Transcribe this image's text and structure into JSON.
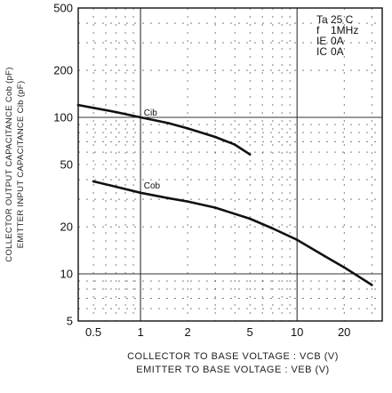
{
  "chart_data": {
    "type": "line",
    "x_scale": "log",
    "y_scale": "log",
    "xlim": [
      0.4,
      35
    ],
    "ylim": [
      5,
      500
    ],
    "grid": true,
    "x_ticks": [
      0.5,
      1,
      2,
      5,
      10,
      20
    ],
    "x_tick_labels": [
      "0.5",
      "1",
      "2",
      "5",
      "10",
      "20"
    ],
    "y_ticks": [
      5,
      10,
      20,
      50,
      100,
      200,
      500
    ],
    "y_tick_labels": [
      "5",
      "10",
      "20",
      "50",
      "100",
      "200",
      "500"
    ],
    "ylabel_lines": [
      "COLLECTOR OUTPUT CAPACITANCE  Cob (pF)",
      "EMITTER INPUT CAPACITANCE  Cib (pF)"
    ],
    "xlabel_lines": [
      "COLLECTOR TO BASE VOLTAGE : VCB  (V)",
      "EMITTER TO BASE VOLTAGE : VEB  (V)"
    ],
    "conditions": [
      {
        "label": "Ta",
        "value": "25 C"
      },
      {
        "label": "f",
        "value": "1MHz"
      },
      {
        "label": "IE",
        "value": "0A"
      },
      {
        "label": "IC",
        "value": "0A"
      }
    ],
    "series": [
      {
        "name": "Cib",
        "x": [
          0.4,
          0.5,
          0.7,
          1,
          1.5,
          2,
          3,
          4,
          5
        ],
        "y": [
          120,
          115,
          108,
          100,
          92,
          85,
          75,
          67,
          58
        ]
      },
      {
        "name": "Cob",
        "x": [
          0.5,
          0.7,
          1,
          1.5,
          2,
          3,
          5,
          7,
          10,
          15,
          20,
          30
        ],
        "y": [
          39,
          36,
          33,
          30.5,
          29,
          26.5,
          22.5,
          19.5,
          16.5,
          13,
          11,
          8.5
        ]
      }
    ]
  }
}
